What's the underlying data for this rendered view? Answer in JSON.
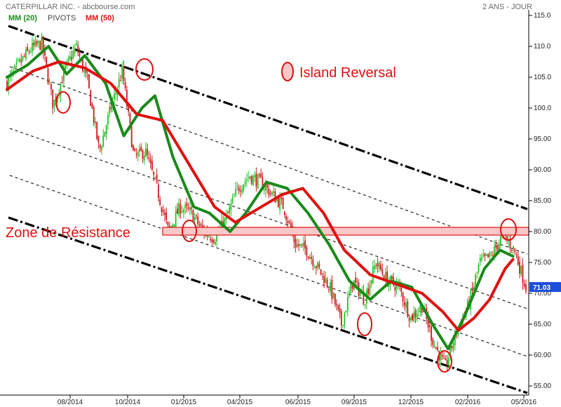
{
  "header": {
    "title": "CATERPILLAR INC. - abcbourse.com",
    "period": "2 ANS - JOUR"
  },
  "legend": [
    {
      "label": "MM (20)",
      "color": "#1a8a1a"
    },
    {
      "label": "PIVOTS",
      "color": "#333333"
    },
    {
      "label": "MM (50)",
      "color": "#e01010"
    }
  ],
  "annotations": {
    "island_label": "Island Reversal",
    "zone_label": "Zone de Résistance",
    "last_price": "71.03"
  },
  "chart_data": {
    "type": "candlestick",
    "title": "CATERPILLAR INC.",
    "ylim": [
      53,
      117
    ],
    "y_ticks": [
      "55.00",
      "60.00",
      "65.00",
      "70.00",
      "75.00",
      "80.00",
      "85.00",
      "90.00",
      "95.00",
      "100.0",
      "105.0",
      "110.0",
      "115.0"
    ],
    "x_ticks": [
      "08/2014",
      "10/2014",
      "01/2015",
      "04/2015",
      "06/2015",
      "09/2015",
      "12/2015",
      "02/2016",
      "05/2016"
    ],
    "close_path": [
      [
        "06/2014",
        104.0
      ],
      [
        "07/2014",
        107.0
      ],
      [
        "07/2014",
        109.5
      ],
      [
        "08/2014",
        110.5
      ],
      [
        "08/2014",
        100.5
      ],
      [
        "09/2014",
        106.0
      ],
      [
        "09/2014",
        110.0
      ],
      [
        "10/2014",
        104.0
      ],
      [
        "10/2014",
        93.0
      ],
      [
        "11/2014",
        100.0
      ],
      [
        "11/2014",
        106.0
      ],
      [
        "12/2014",
        92.0
      ],
      [
        "12/2014",
        93.0
      ],
      [
        "01/2015",
        87.0
      ],
      [
        "01/2015",
        80.0
      ],
      [
        "02/2015",
        84.0
      ],
      [
        "02/2015",
        83.0
      ],
      [
        "03/2015",
        80.0
      ],
      [
        "03/2015",
        79.0
      ],
      [
        "04/2015",
        82.0
      ],
      [
        "04/2015",
        87.0
      ],
      [
        "05/2015",
        89.0
      ],
      [
        "05/2015",
        88.0
      ],
      [
        "06/2015",
        86.0
      ],
      [
        "06/2015",
        84.0
      ],
      [
        "07/2015",
        78.0
      ],
      [
        "07/2015",
        77.0
      ],
      [
        "08/2015",
        74.0
      ],
      [
        "08/2015",
        71.0
      ],
      [
        "08/2015",
        65.0
      ],
      [
        "09/2015",
        72.0
      ],
      [
        "10/2015",
        69.0
      ],
      [
        "10/2015",
        75.0
      ],
      [
        "11/2015",
        72.0
      ],
      [
        "11/2015",
        71.0
      ],
      [
        "12/2015",
        66.0
      ],
      [
        "12/2015",
        68.0
      ],
      [
        "01/2016",
        62.0
      ],
      [
        "01/2016",
        58.0
      ],
      [
        "02/2016",
        64.0
      ],
      [
        "02/2016",
        68.0
      ],
      [
        "03/2016",
        75.0
      ],
      [
        "03/2016",
        76.0
      ],
      [
        "04/2016",
        79.5
      ],
      [
        "04/2016",
        77.0
      ],
      [
        "05/2016",
        71.0
      ]
    ],
    "series": [
      {
        "name": "MM (20)",
        "color": "#1a8a1a",
        "values": [
          [
            0,
            105
          ],
          [
            0.04,
            107
          ],
          [
            0.08,
            110
          ],
          [
            0.115,
            105.5
          ],
          [
            0.15,
            108.5
          ],
          [
            0.19,
            104
          ],
          [
            0.225,
            95.5
          ],
          [
            0.26,
            100
          ],
          [
            0.285,
            102
          ],
          [
            0.32,
            92
          ],
          [
            0.36,
            84
          ],
          [
            0.39,
            83
          ],
          [
            0.43,
            80
          ],
          [
            0.46,
            83
          ],
          [
            0.5,
            88
          ],
          [
            0.54,
            87
          ],
          [
            0.58,
            83
          ],
          [
            0.62,
            78
          ],
          [
            0.66,
            72
          ],
          [
            0.7,
            69
          ],
          [
            0.74,
            72
          ],
          [
            0.78,
            71
          ],
          [
            0.82,
            65
          ],
          [
            0.85,
            61
          ],
          [
            0.88,
            66
          ],
          [
            0.92,
            74
          ],
          [
            0.95,
            77
          ],
          [
            0.975,
            76
          ]
        ]
      },
      {
        "name": "MM (50)",
        "color": "#e01010",
        "values": [
          [
            0,
            103
          ],
          [
            0.05,
            106
          ],
          [
            0.1,
            107.5
          ],
          [
            0.15,
            106.5
          ],
          [
            0.2,
            104
          ],
          [
            0.25,
            99
          ],
          [
            0.3,
            98
          ],
          [
            0.35,
            91
          ],
          [
            0.4,
            84
          ],
          [
            0.44,
            81.5
          ],
          [
            0.48,
            83.5
          ],
          [
            0.53,
            86
          ],
          [
            0.57,
            87
          ],
          [
            0.61,
            83
          ],
          [
            0.65,
            77
          ],
          [
            0.7,
            73
          ],
          [
            0.75,
            71.5
          ],
          [
            0.8,
            70
          ],
          [
            0.84,
            67
          ],
          [
            0.87,
            64
          ],
          [
            0.9,
            66
          ],
          [
            0.93,
            69
          ],
          [
            0.96,
            74
          ],
          [
            0.975,
            75.5
          ]
        ]
      }
    ],
    "resistance_zone": [
      79.4,
      80.7
    ],
    "last_value": 71.03,
    "channel": {
      "type": "descending",
      "lines": "dash-dot outer, dotted inner"
    },
    "grid": false
  }
}
